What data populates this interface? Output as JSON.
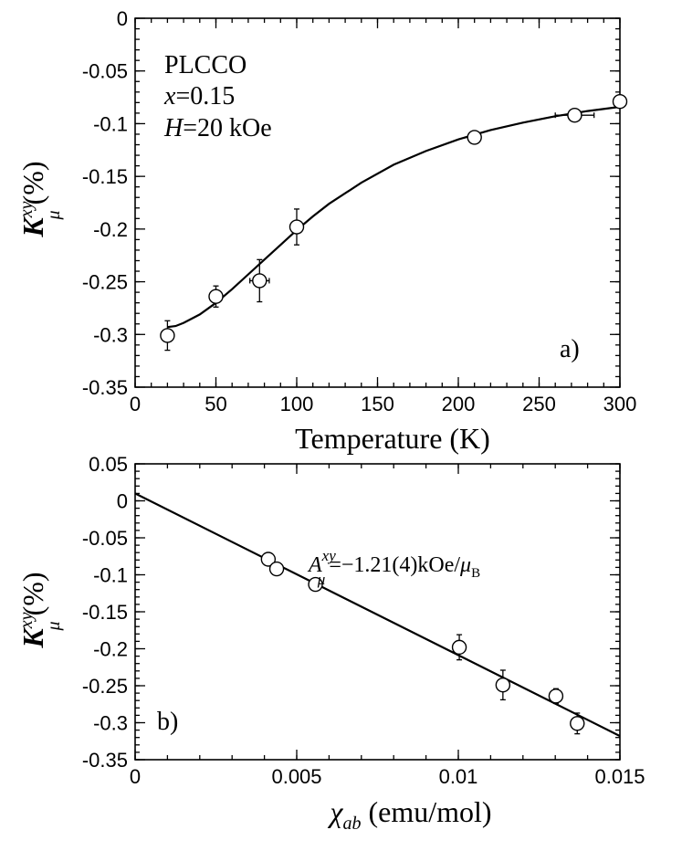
{
  "chart_data": [
    {
      "type": "scatter",
      "panel_label": "a)",
      "annotations": [
        "PLCCO",
        "x",
        "=0.15",
        "H",
        "=20 kOe"
      ],
      "xlabel": "Temperature (K)",
      "ylabel": {
        "main": "K",
        "sup": "xy",
        "sub": "μ",
        "unit": "(%)"
      },
      "xlim": [
        0,
        300
      ],
      "ylim": [
        -0.35,
        0
      ],
      "x_ticks": [
        "0",
        "50",
        "100",
        "150",
        "200",
        "250",
        "300"
      ],
      "y_ticks": [
        "0",
        "-0.05",
        "-0.1",
        "-0.15",
        "-0.2",
        "-0.25",
        "-0.3",
        "-0.35"
      ],
      "points": [
        {
          "x": 20,
          "y": -0.301,
          "yerr": 0.014,
          "xerr": 0
        },
        {
          "x": 50,
          "y": -0.264,
          "yerr": 0.01,
          "xerr": 0
        },
        {
          "x": 77,
          "y": -0.249,
          "yerr": 0.02,
          "xerr": 6
        },
        {
          "x": 100,
          "y": -0.198,
          "yerr": 0.017,
          "xerr": 0
        },
        {
          "x": 210,
          "y": -0.113,
          "yerr": 0,
          "xerr": 0
        },
        {
          "x": 272,
          "y": -0.092,
          "yerr": 0,
          "xerr": 12
        },
        {
          "x": 300,
          "y": -0.079,
          "yerr": 0,
          "xerr": 0
        }
      ],
      "fit_curve": {
        "x": [
          20,
          25,
          30,
          40,
          50,
          60,
          70,
          80,
          90,
          100,
          110,
          120,
          140,
          160,
          180,
          200,
          220,
          240,
          260,
          280,
          300
        ],
        "y": [
          -0.293,
          -0.292,
          -0.289,
          -0.281,
          -0.27,
          -0.257,
          -0.243,
          -0.229,
          -0.215,
          -0.201,
          -0.188,
          -0.176,
          -0.156,
          -0.139,
          -0.126,
          -0.115,
          -0.106,
          -0.099,
          -0.093,
          -0.088,
          -0.084
        ]
      }
    },
    {
      "type": "scatter",
      "panel_label": "b)",
      "annotation": {
        "main": "A",
        "sup": "xy",
        "sub": "μ",
        "text": "=−1.21(4)kOe/",
        "mu": "μ",
        "mu_sub": "B"
      },
      "xlabel": {
        "main": "χ",
        "sub": "ab",
        "unit": "(emu/mol)"
      },
      "ylabel": {
        "main": "K",
        "sup": "xy",
        "sub": "μ",
        "unit": "(%)"
      },
      "xlim": [
        0,
        0.015
      ],
      "ylim": [
        -0.35,
        0.05
      ],
      "x_ticks": [
        "0",
        "0.005",
        "0.01",
        "0.015"
      ],
      "y_ticks": [
        "0.05",
        "0",
        "-0.05",
        "-0.1",
        "-0.15",
        "-0.2",
        "-0.25",
        "-0.3",
        "-0.35"
      ],
      "points": [
        {
          "x": 0.00412,
          "y": -0.079,
          "yerr": 0
        },
        {
          "x": 0.00438,
          "y": -0.092,
          "yerr": 0
        },
        {
          "x": 0.00558,
          "y": -0.113,
          "yerr": 0
        },
        {
          "x": 0.01003,
          "y": -0.198,
          "yerr": 0.017
        },
        {
          "x": 0.01138,
          "y": -0.249,
          "yerr": 0.02
        },
        {
          "x": 0.01302,
          "y": -0.264,
          "yerr": 0.01
        },
        {
          "x": 0.01368,
          "y": -0.301,
          "yerr": 0.014
        }
      ],
      "fit_line": {
        "x": [
          0,
          0.015
        ],
        "y": [
          0.01,
          -0.318
        ]
      }
    }
  ]
}
